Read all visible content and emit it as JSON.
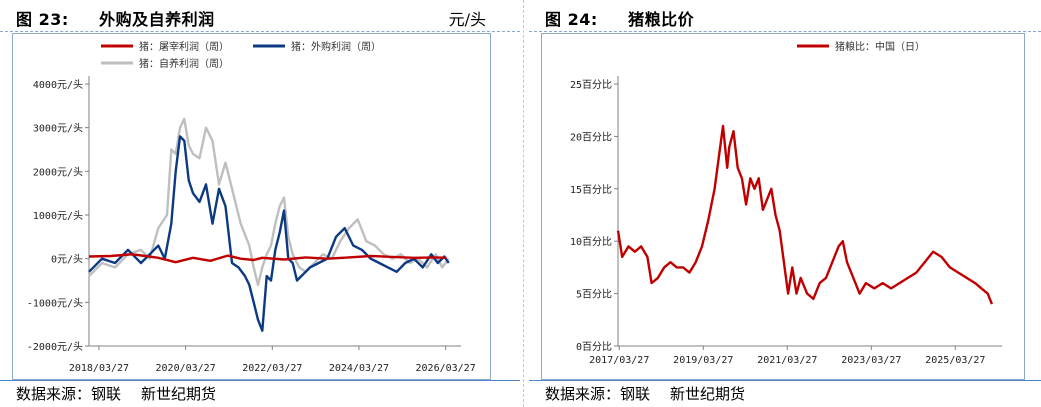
{
  "charts": [
    {
      "fig_label": "图 23:",
      "fig_title": "外购及自养利润",
      "unit": "元/头",
      "source_label": "数据来源：",
      "source_items": [
        "钢联",
        "新世纪期货"
      ],
      "chart_data": {
        "type": "line",
        "title": "外购及自养利润",
        "ylim": [
          -2000,
          4000
        ],
        "yticks": [
          -2000,
          -1000,
          0,
          1000,
          2000,
          3000,
          4000
        ],
        "ytick_labels": [
          "-2000元/头",
          "-1000元/头",
          "0元/头",
          "1000元/头",
          "2000元/头",
          "3000元/头",
          "4000元/头"
        ],
        "xlim": [
          2018.0,
          2026.4
        ],
        "xticks": [
          2018.23,
          2020.23,
          2022.23,
          2024.23,
          2026.23
        ],
        "xtick_labels": [
          "2018/03/27",
          "2020/03/27",
          "2022/03/27",
          "2024/03/27",
          "2026/03/27"
        ],
        "grid": false,
        "legend": "top",
        "series": [
          {
            "name": "猪：屠宰利润（周）",
            "color": "#c00000",
            "x": [
              2018.0,
              2018.5,
              2019.0,
              2019.3,
              2019.6,
              2020.0,
              2020.4,
              2020.8,
              2021.2,
              2021.5,
              2021.8,
              2022.0,
              2022.5,
              2023.0,
              2023.5,
              2024.0,
              2024.5,
              2025.0,
              2025.5,
              2026.0,
              2026.25
            ],
            "values": [
              50,
              60,
              100,
              60,
              20,
              -80,
              20,
              -50,
              70,
              0,
              -30,
              20,
              -20,
              30,
              0,
              30,
              60,
              40,
              20,
              30,
              20
            ]
          },
          {
            "name": "猪：外购利润（周）",
            "color": "#0c3a82",
            "x": [
              2018.0,
              2018.3,
              2018.6,
              2018.9,
              2019.2,
              2019.4,
              2019.6,
              2019.75,
              2019.9,
              2020.0,
              2020.1,
              2020.2,
              2020.3,
              2020.4,
              2020.55,
              2020.7,
              2020.85,
              2021.0,
              2021.15,
              2021.3,
              2021.45,
              2021.6,
              2021.7,
              2021.8,
              2021.9,
              2022.0,
              2022.1,
              2022.2,
              2022.3,
              2022.4,
              2022.5,
              2022.6,
              2022.7,
              2022.8,
              2022.9,
              2023.0,
              2023.1,
              2023.3,
              2023.5,
              2023.7,
              2023.9,
              2024.1,
              2024.3,
              2024.5,
              2024.7,
              2024.9,
              2025.1,
              2025.3,
              2025.5,
              2025.7,
              2025.9,
              2026.05,
              2026.2,
              2026.3
            ],
            "values": [
              -300,
              0,
              -100,
              200,
              -100,
              100,
              300,
              0,
              800,
              2000,
              2800,
              2700,
              1800,
              1500,
              1300,
              1700,
              800,
              1600,
              1200,
              -100,
              -200,
              -400,
              -600,
              -1000,
              -1400,
              -1650,
              -400,
              -500,
              200,
              600,
              1100,
              0,
              -100,
              -500,
              -400,
              -300,
              -200,
              -100,
              0,
              500,
              700,
              300,
              200,
              0,
              -100,
              -200,
              -300,
              -100,
              0,
              -200,
              100,
              -100,
              50,
              -100
            ]
          },
          {
            "name": "猪：自养利润（周）",
            "color": "#bfbfbf",
            "x": [
              2018.0,
              2018.3,
              2018.6,
              2018.9,
              2019.2,
              2019.4,
              2019.6,
              2019.8,
              2019.9,
              2020.0,
              2020.1,
              2020.2,
              2020.3,
              2020.4,
              2020.55,
              2020.7,
              2020.85,
              2021.0,
              2021.15,
              2021.3,
              2021.5,
              2021.7,
              2021.8,
              2021.9,
              2022.0,
              2022.1,
              2022.2,
              2022.3,
              2022.4,
              2022.5,
              2022.6,
              2022.7,
              2022.85,
              2023.0,
              2023.2,
              2023.4,
              2023.6,
              2023.8,
              2024.0,
              2024.2,
              2024.4,
              2024.6,
              2024.8,
              2025.0,
              2025.2,
              2025.4,
              2025.6,
              2025.8,
              2026.0,
              2026.15,
              2026.3
            ],
            "values": [
              -400,
              -100,
              -200,
              100,
              200,
              0,
              700,
              1000,
              2500,
              2400,
              3000,
              3200,
              2600,
              2400,
              2300,
              3000,
              2700,
              1700,
              2200,
              1600,
              800,
              300,
              -200,
              -600,
              -200,
              100,
              300,
              800,
              1200,
              1400,
              500,
              100,
              -200,
              -300,
              -100,
              100,
              0,
              400,
              700,
              900,
              400,
              300,
              100,
              0,
              100,
              -100,
              0,
              -200,
              100,
              -200,
              0
            ]
          }
        ]
      }
    },
    {
      "fig_label": "图 24:",
      "fig_title": "猪粮比价",
      "unit": "",
      "source_label": "数据来源：",
      "source_items": [
        "钢联",
        "新世纪期货"
      ],
      "chart_data": {
        "type": "line",
        "title": "猪粮比价",
        "ylim": [
          0,
          25
        ],
        "yticks": [
          0,
          5,
          10,
          15,
          20,
          25
        ],
        "ytick_labels": [
          "0百分比",
          "5百分比",
          "10百分比",
          "15百分比",
          "20百分比",
          "25百分比"
        ],
        "xlim": [
          2017.2,
          2026.15
        ],
        "xticks": [
          2017.23,
          2019.23,
          2021.23,
          2023.23,
          2025.23
        ],
        "xtick_labels": [
          "2017/03/27",
          "2019/03/27",
          "2021/03/27",
          "2023/03/27",
          "2025/03/27"
        ],
        "grid": false,
        "legend": "top",
        "series": [
          {
            "name": "猪粮比：中国（日）",
            "color": "#c00000",
            "x": [
              2017.2,
              2017.3,
              2017.45,
              2017.6,
              2017.75,
              2017.9,
              2018.0,
              2018.15,
              2018.3,
              2018.45,
              2018.6,
              2018.75,
              2018.9,
              2019.05,
              2019.2,
              2019.35,
              2019.5,
              2019.6,
              2019.7,
              2019.8,
              2019.85,
              2019.95,
              2020.05,
              2020.15,
              2020.25,
              2020.35,
              2020.45,
              2020.55,
              2020.65,
              2020.75,
              2020.85,
              2020.95,
              2021.05,
              2021.15,
              2021.25,
              2021.35,
              2021.45,
              2021.55,
              2021.7,
              2021.85,
              2022.0,
              2022.15,
              2022.3,
              2022.45,
              2022.55,
              2022.65,
              2022.75,
              2022.85,
              2022.95,
              2023.1,
              2023.3,
              2023.5,
              2023.7,
              2023.9,
              2024.1,
              2024.3,
              2024.5,
              2024.7,
              2024.9,
              2025.1,
              2025.3,
              2025.5,
              2025.7,
              2025.85,
              2026.0,
              2026.1
            ],
            "values": [
              11,
              8.5,
              9.5,
              9,
              9.5,
              8.5,
              6,
              6.5,
              7.5,
              8,
              7.5,
              7.5,
              7,
              8,
              9.5,
              12,
              15,
              18,
              21,
              17,
              19,
              20.5,
              17,
              16,
              13.5,
              16,
              15,
              16,
              13,
              14,
              15,
              12.5,
              11,
              8,
              5,
              7.5,
              5,
              6.5,
              5,
              4.5,
              6,
              6.5,
              8,
              9.5,
              10,
              8,
              7,
              6,
              5,
              6,
              5.5,
              6,
              5.5,
              6,
              6.5,
              7,
              8,
              9,
              8.5,
              7.5,
              7,
              6.5,
              6,
              5.5,
              5,
              4
            ]
          }
        ]
      }
    }
  ]
}
